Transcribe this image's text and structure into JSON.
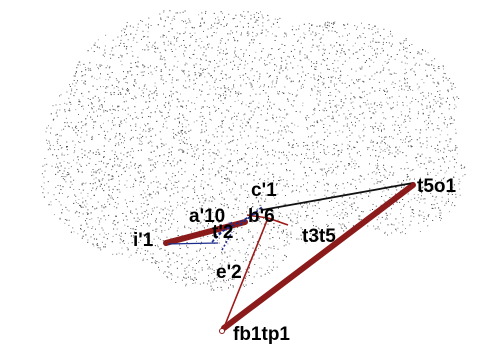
{
  "figure": {
    "background": "#ffffff",
    "cloud_color": "#4a4a4a",
    "electrode_labels": [
      {
        "id": "t5o1",
        "text": "t5o1"
      },
      {
        "id": "c1",
        "text": "c'1"
      },
      {
        "id": "a10",
        "text": "a'10"
      },
      {
        "id": "b6",
        "text": "b'6"
      },
      {
        "id": "t3t5",
        "text": "t3t5"
      },
      {
        "id": "i1",
        "text": "i'1"
      },
      {
        "id": "t2",
        "text": "t'2"
      },
      {
        "id": "e2",
        "text": "e'2"
      },
      {
        "id": "fb1tp1",
        "text": "fb1tp1"
      }
    ],
    "connection_colors": {
      "strong": "#8b1a1a",
      "thin_red": "#a01818",
      "black": "#111111",
      "blue": "#1c2c8c"
    }
  }
}
